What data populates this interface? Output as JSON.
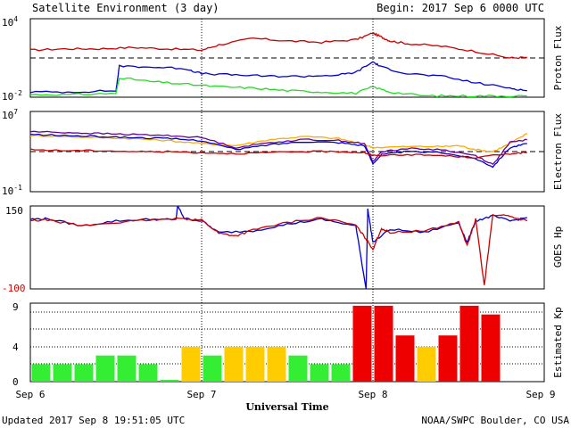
{
  "header": {
    "title": "Satellite Environment (3 day)",
    "begin": "Begin:  2017 Sep 6 0000 UTC"
  },
  "footer": {
    "updated": "Updated 2017 Sep  8 19:51:05 UTC",
    "credit": "NOAA/SWPC Boulder, CO USA"
  },
  "x_axis": {
    "label": "Universal Time",
    "ticks": [
      "Sep 6",
      "Sep 7",
      "Sep 8",
      "Sep 9"
    ]
  },
  "colors": {
    "red": "#cc0000",
    "blue": "#0000cc",
    "green": "#22dd22",
    "orange": "#ffaa00",
    "purple": "#660099",
    "kp_green": "#33ee33",
    "kp_yellow": "#ffcc00",
    "kp_red": "#ee0000"
  },
  "chart_data": [
    {
      "type": "line",
      "panel": "proton",
      "ylabel": "Proton Flux",
      "yscale": "log",
      "ticks_text": {
        "top": "10",
        "top_exp": "4",
        "bottom": "10",
        "bottom_exp": "-2"
      },
      "ylim_log10": [
        -2,
        4
      ],
      "threshold_log10": 1,
      "xlim_days": [
        0,
        3
      ],
      "series": [
        {
          "color": "#cc0000",
          "x": [
            0,
            0.2,
            0.4,
            0.6,
            0.8,
            1.0,
            1.1,
            1.3,
            1.5,
            1.7,
            1.9,
            2.0,
            2.05,
            2.1,
            2.2,
            2.4,
            2.6,
            2.8,
            2.9
          ],
          "log10": [
            1.6,
            1.7,
            1.7,
            1.8,
            1.7,
            1.6,
            2.0,
            2.5,
            2.3,
            2.2,
            2.4,
            2.9,
            2.6,
            2.3,
            2.1,
            1.9,
            1.5,
            1.0,
            1.05
          ]
        },
        {
          "color": "#0000cc",
          "x": [
            0,
            0.25,
            0.5,
            0.52,
            0.7,
            0.9,
            1.0,
            1.2,
            1.4,
            1.6,
            1.8,
            1.9,
            2.0,
            2.05,
            2.2,
            2.4,
            2.6,
            2.8,
            2.9
          ],
          "log10": [
            -1.6,
            -1.6,
            -1.5,
            0.4,
            0.3,
            0.2,
            -0.2,
            -0.3,
            -0.4,
            -0.4,
            -0.3,
            -0.1,
            0.7,
            0.3,
            -0.2,
            -0.4,
            -0.9,
            -1.3,
            -1.5
          ]
        },
        {
          "color": "#22dd22",
          "x": [
            0,
            0.25,
            0.5,
            0.52,
            0.7,
            0.9,
            1.1,
            1.3,
            1.5,
            1.7,
            1.9,
            2.0,
            2.1,
            2.3,
            2.5,
            2.7,
            2.9
          ],
          "log10": [
            -1.8,
            -1.8,
            -1.7,
            -0.5,
            -0.8,
            -1.0,
            -1.2,
            -1.3,
            -1.5,
            -1.6,
            -1.7,
            -1.2,
            -1.6,
            -1.9,
            -1.9,
            -1.9,
            -1.9
          ]
        }
      ]
    },
    {
      "type": "line",
      "panel": "electron",
      "ylabel": "Electron Flux",
      "yscale": "log",
      "ticks_text": {
        "top": "10",
        "top_exp": "7",
        "bottom": "10",
        "bottom_exp": "-1"
      },
      "ylim_log10": [
        -1,
        7
      ],
      "threshold_log10": 3,
      "xlim_days": [
        0,
        3
      ],
      "series": [
        {
          "color": "#ffaa00",
          "x": [
            0,
            0.2,
            0.4,
            0.6,
            0.8,
            1.0,
            1.2,
            1.4,
            1.6,
            1.8,
            1.95,
            2.0,
            2.2,
            2.4,
            2.5,
            2.6,
            2.7,
            2.8,
            2.9
          ],
          "log10": [
            4.6,
            4.5,
            4.4,
            4.3,
            4.1,
            3.8,
            3.6,
            4.2,
            4.5,
            4.3,
            3.7,
            3.4,
            3.5,
            3.5,
            3.6,
            3.2,
            3.0,
            3.8,
            4.8
          ]
        },
        {
          "color": "#660099",
          "x": [
            0,
            0.2,
            0.4,
            0.6,
            0.8,
            1.0,
            1.2,
            1.4,
            1.6,
            1.8,
            1.95,
            2.0,
            2.05,
            2.2,
            2.4,
            2.6,
            2.7,
            2.8,
            2.9
          ],
          "log10": [
            5.0,
            4.9,
            4.8,
            4.7,
            4.6,
            4.4,
            3.4,
            3.9,
            4.2,
            4.1,
            3.8,
            2.0,
            3.0,
            3.3,
            3.2,
            2.6,
            1.7,
            3.9,
            4.2
          ]
        },
        {
          "color": "#0000cc",
          "x": [
            0,
            0.2,
            0.4,
            0.6,
            0.8,
            1.0,
            1.2,
            1.4,
            1.6,
            1.8,
            1.95,
            2.0,
            2.05,
            2.2,
            2.4,
            2.6,
            2.7,
            2.8,
            2.9
          ],
          "log10": [
            4.7,
            4.6,
            4.5,
            4.4,
            4.3,
            4.1,
            3.2,
            3.7,
            4.0,
            3.9,
            3.6,
            1.8,
            2.7,
            3.0,
            2.9,
            2.3,
            1.5,
            3.4,
            3.8
          ]
        },
        {
          "color": "#cc0000",
          "x": [
            0,
            0.2,
            0.4,
            0.6,
            0.8,
            1.0,
            1.2,
            1.4,
            1.6,
            1.8,
            1.95,
            2.0,
            2.2,
            2.4,
            2.6,
            2.8,
            2.9
          ],
          "log10": [
            3.2,
            3.1,
            3.1,
            3.0,
            3.0,
            2.9,
            2.8,
            2.9,
            3.0,
            3.0,
            2.9,
            2.6,
            2.7,
            2.6,
            2.4,
            2.8,
            2.9
          ]
        }
      ]
    },
    {
      "type": "line",
      "panel": "hp",
      "ylabel": "GOES Hp",
      "yscale": "linear",
      "ticks_text": {
        "top": "150",
        "bottom": "-100"
      },
      "ylim": [
        -100,
        150
      ],
      "xlim_days": [
        0,
        3
      ],
      "series": [
        {
          "color": "#0000cc",
          "x": [
            0,
            0.1,
            0.3,
            0.5,
            0.7,
            0.85,
            0.86,
            0.9,
            1.0,
            1.1,
            1.3,
            1.5,
            1.7,
            1.9,
            1.96,
            1.97,
            2.0,
            2.1,
            2.3,
            2.5,
            2.55,
            2.6,
            2.7,
            2.8,
            2.9
          ],
          "y": [
            110,
            112,
            90,
            105,
            110,
            108,
            150,
            112,
            105,
            70,
            75,
            95,
            110,
            90,
            -100,
            140,
            40,
            80,
            70,
            100,
            40,
            105,
            120,
            105,
            115
          ]
        },
        {
          "color": "#cc0000",
          "x": [
            0,
            0.1,
            0.3,
            0.5,
            0.7,
            0.9,
            1.0,
            1.1,
            1.2,
            1.3,
            1.5,
            1.7,
            1.9,
            1.96,
            2.0,
            2.05,
            2.1,
            2.3,
            2.5,
            2.55,
            2.6,
            2.65,
            2.7,
            2.8,
            2.9
          ],
          "y": [
            105,
            108,
            90,
            100,
            108,
            112,
            108,
            68,
            60,
            78,
            100,
            115,
            92,
            50,
            20,
            82,
            70,
            75,
            102,
            30,
            110,
            -90,
            125,
            118,
            105
          ]
        }
      ]
    },
    {
      "type": "bar",
      "panel": "kp",
      "ylabel": "Estimated Kp",
      "ticks_text": {
        "top": "9",
        "middle": "4",
        "bottom": "0"
      },
      "ylim": [
        0,
        9
      ],
      "interval_hours": 3,
      "values": [
        2,
        2,
        2,
        3,
        3,
        2,
        0.2,
        4,
        3,
        4,
        4,
        4,
        3,
        2,
        2,
        8.7,
        8.7,
        5.3,
        4,
        5.3,
        8.7,
        7.7
      ],
      "level_colors": {
        "green": "below 4",
        "yellow": "4",
        "red": "5 and above"
      }
    }
  ]
}
